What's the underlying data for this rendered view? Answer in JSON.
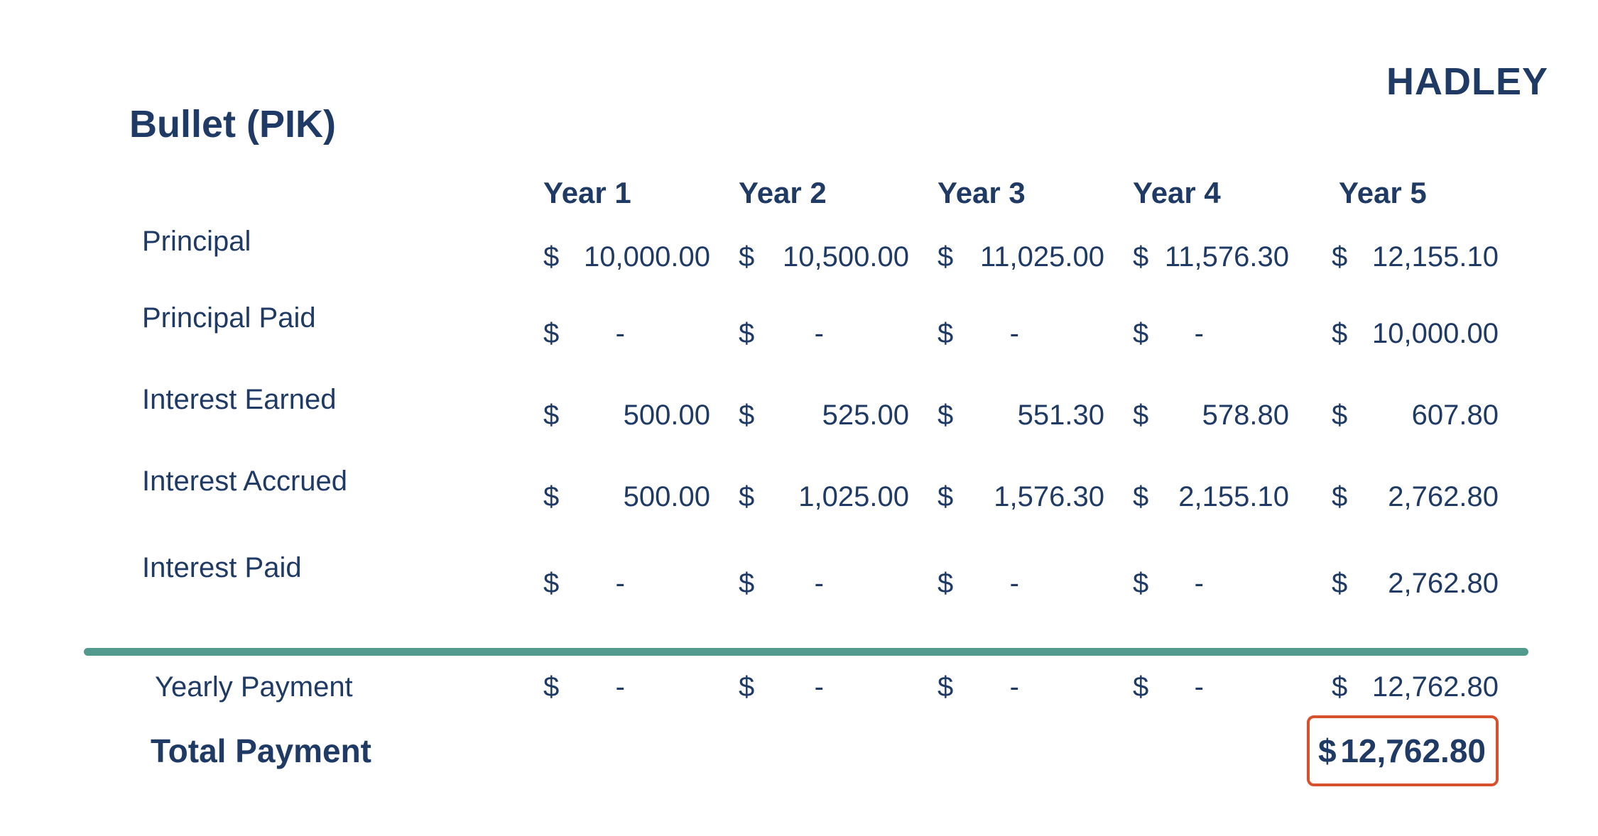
{
  "brand": "HADLEY",
  "title": "Bullet (PIK)",
  "colors": {
    "navy": "#1f3a64",
    "teal": "#529a8d",
    "highlight": "#d8512f"
  },
  "table": {
    "currency_symbol": "$",
    "columns": [
      "Year 1",
      "Year 2",
      "Year 3",
      "Year 4",
      "Year 5"
    ],
    "rows": [
      {
        "key": "principal",
        "label": "Principal",
        "values": [
          "10,000.00",
          "10,500.00",
          "11,025.00",
          "11,576.30",
          "12,155.10"
        ]
      },
      {
        "key": "principal-paid",
        "label": "Principal Paid",
        "values": [
          "-",
          "-",
          "-",
          "-",
          "10,000.00"
        ]
      },
      {
        "key": "interest-earned",
        "label": "Interest Earned",
        "values": [
          "500.00",
          "525.00",
          "551.30",
          "578.80",
          "607.80"
        ]
      },
      {
        "key": "interest-accrued",
        "label": "Interest Accrued",
        "values": [
          "500.00",
          "1,025.00",
          "1,576.30",
          "2,155.10",
          "2,762.80"
        ]
      },
      {
        "key": "interest-paid",
        "label": "Interest Paid",
        "values": [
          "-",
          "-",
          "-",
          "-",
          "2,762.80"
        ]
      },
      {
        "key": "yearly-payment",
        "label": "Yearly Payment",
        "values": [
          "-",
          "-",
          "-",
          "-",
          "12,762.80"
        ],
        "indent": true
      }
    ],
    "total_payment": {
      "label": "Total Payment",
      "value": "12,762.80"
    }
  }
}
